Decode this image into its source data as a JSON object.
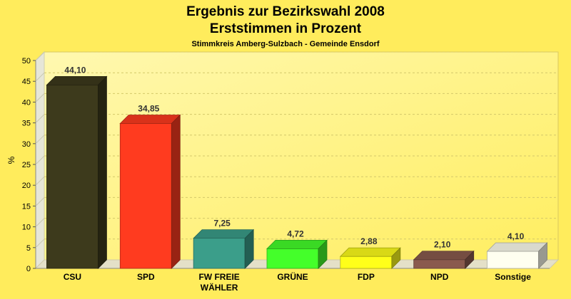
{
  "chart_data": {
    "type": "bar",
    "title": "Ergebnis zur Bezirkswahl 2008",
    "subtitle": "Erststimmen in Prozent",
    "caption": "Stimmkreis Amberg-Sulzbach - Gemeinde Ensdorf",
    "ylabel": "%",
    "xlabel": "",
    "ylim": [
      0,
      50
    ],
    "yticks": [
      0,
      5,
      10,
      15,
      20,
      25,
      30,
      35,
      40,
      45,
      50
    ],
    "grid": true,
    "categories": [
      "CSU",
      "SPD",
      "FW FREIE WÄHLER",
      "GRÜNE",
      "FDP",
      "NPD",
      "Sonstige"
    ],
    "values": [
      44.1,
      34.85,
      7.25,
      4.72,
      2.88,
      2.1,
      4.1
    ],
    "value_labels": [
      "44,10",
      "34,85",
      "7,25",
      "4,72",
      "2,88",
      "2,10",
      "4,10"
    ],
    "colors": [
      "#3d3a1c",
      "#ff3b1f",
      "#3b9e8a",
      "#44ff2a",
      "#ffff1a",
      "#8a5a4e",
      "#fffff0"
    ]
  },
  "style": {
    "background": "#ffec5c",
    "plot_bg_top": "#fff6a8",
    "plot_bg_bottom": "#fff067"
  }
}
